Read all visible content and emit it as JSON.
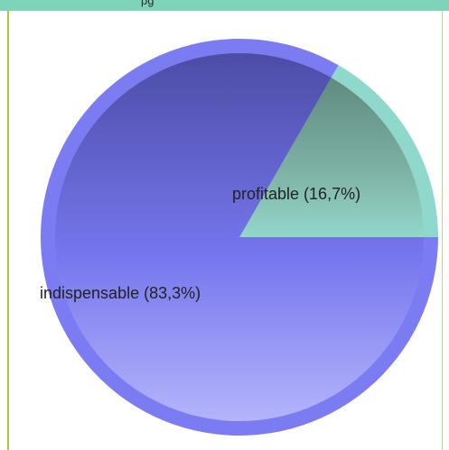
{
  "header": {
    "text": "pg"
  },
  "colors": {
    "header_bg": "#7fd3b8",
    "slice_indispensable": "#7c7cf2",
    "slice_profitable": "#8ed8cc",
    "border_left": "#9ccf3a"
  },
  "chart_data": {
    "type": "pie",
    "categories": [
      "profitable",
      "indispensable"
    ],
    "values": [
      16.7,
      83.3
    ],
    "labels": [
      "profitable (16,7%)",
      "indispensable (83,3%)"
    ],
    "title": "",
    "legend": "none"
  }
}
